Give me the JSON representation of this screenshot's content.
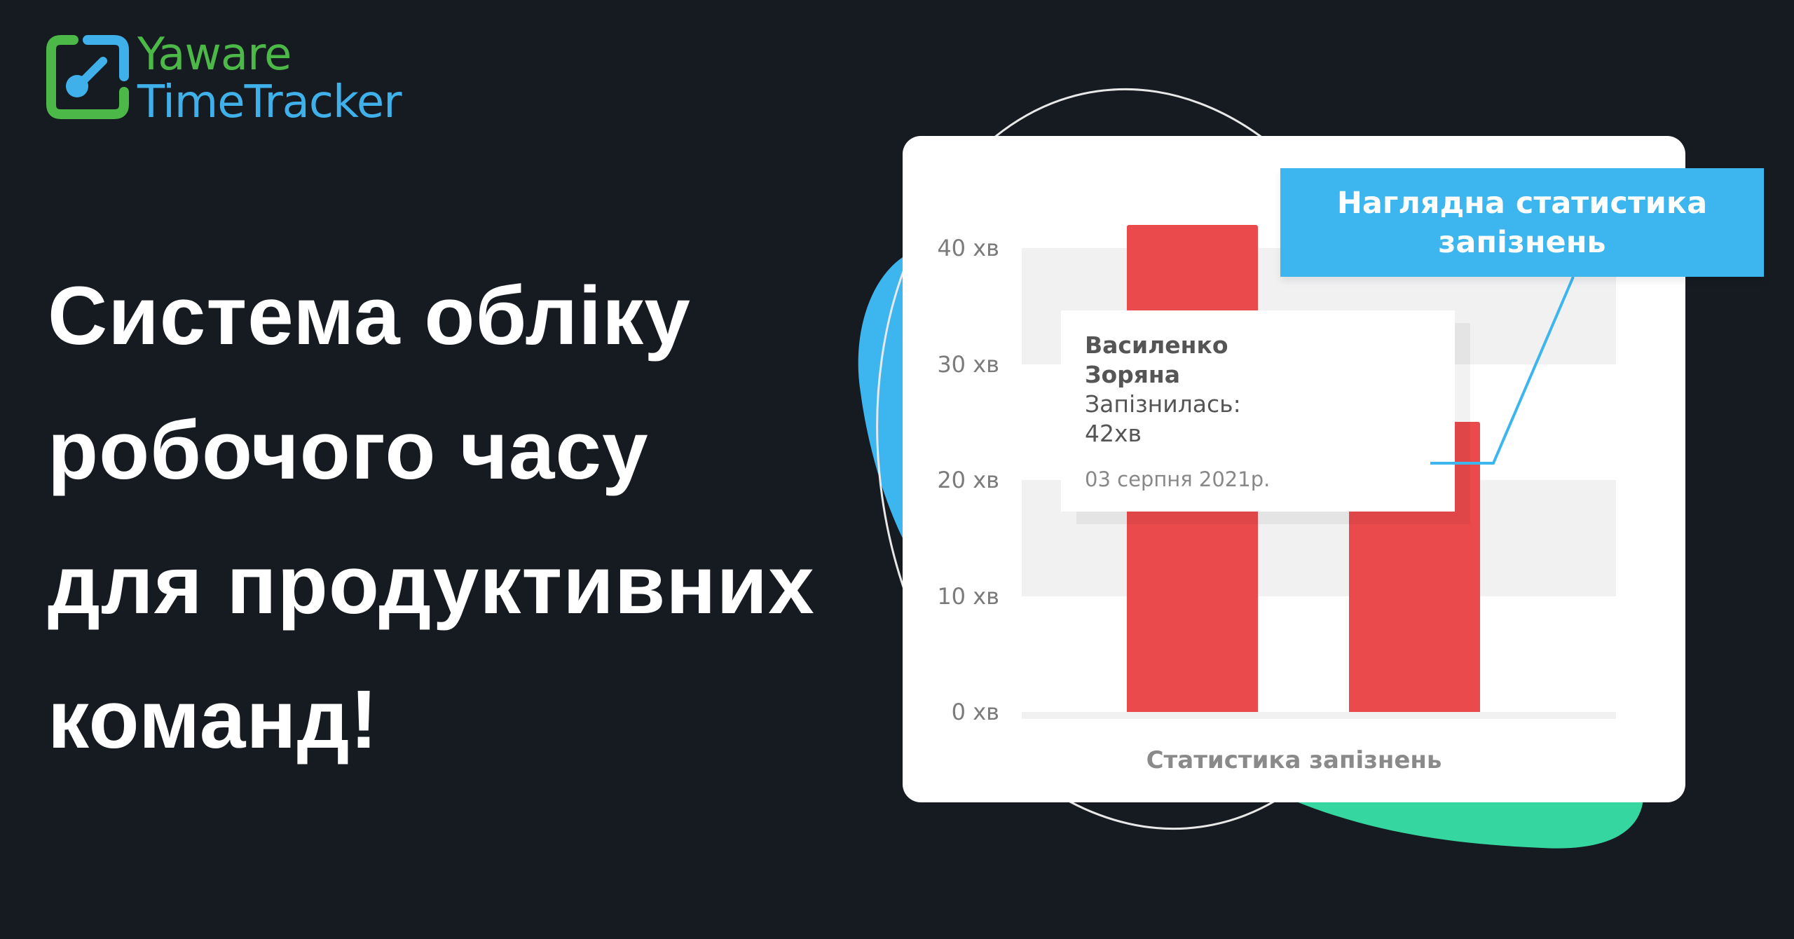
{
  "logo": {
    "line1": "Yaware",
    "line2": "TimeTracker",
    "green": "#4cb848",
    "blue": "#3fb0ea"
  },
  "headline": {
    "lines": [
      "Система обліку",
      "робочого часу",
      "для продуктивних",
      "команд!"
    ]
  },
  "callout": {
    "line1": "Наглядна статистика",
    "line2": "запізнень"
  },
  "tooltip": {
    "name_line1": "Василенко",
    "name_line2": "Зоряна",
    "label": "Запізнилась:",
    "value": "42хв",
    "date": "03 серпня 2021р."
  },
  "chart_data": {
    "type": "bar",
    "title": "Статистика запізнень",
    "y_ticks": [
      "0 хв",
      "10 хв",
      "20 хв",
      "30 хв",
      "40 хв"
    ],
    "ylim": [
      0,
      40
    ],
    "values": [
      42,
      25
    ],
    "bar_color": "#ea4a4b",
    "grid": "alternating bands"
  },
  "colors": {
    "background": "#151b20",
    "accent_blue": "#3db5ee",
    "accent_green": "#35d6a0"
  }
}
